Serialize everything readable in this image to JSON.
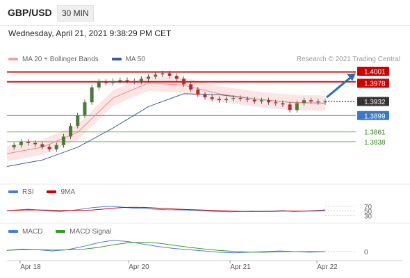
{
  "header": {
    "symbol": "GBP/USD",
    "timeframe": "30 MIN",
    "datetime": "Wednesday, April 21, 2021 9:38:29 PM CET"
  },
  "legend": {
    "ma20": "MA 20 + Bollinger Bands",
    "ma50": "MA 50",
    "credit": "Research © 2021 Trading Central",
    "rsi": "RSI",
    "rsi_ma": "9MA",
    "macd": "MACD",
    "macd_signal": "MACD Signal"
  },
  "colors": {
    "resistance": "#cc0000",
    "support": "#3a78c8",
    "support2": "#7cb563",
    "current": "#333333",
    "ma20": "#f08a8a",
    "ma50": "#3a5c99",
    "band_fill": "#fbe0e0",
    "arrow": "#2a6fb5"
  },
  "chart_data": {
    "type": "candlestick",
    "instrument": "GBP/USD",
    "interval": "30 MIN",
    "x_ticks": [
      "Apr 18",
      "Apr 20",
      "Apr 21",
      "Apr 22"
    ],
    "ylim": [
      1.375,
      1.401
    ],
    "levels": [
      {
        "value": 1.4001,
        "label": "1.4001",
        "kind": "resistance"
      },
      {
        "value": 1.3978,
        "label": "1.3978",
        "kind": "resistance"
      },
      {
        "value": 1.3932,
        "label": "1.3932",
        "kind": "current"
      },
      {
        "value": 1.3899,
        "label": "1.3899",
        "kind": "support"
      },
      {
        "value": 1.3861,
        "label": "1.3861",
        "kind": "support2"
      },
      {
        "value": 1.3838,
        "label": "1.3838",
        "kind": "support2"
      }
    ],
    "price_path": [
      [
        0,
        1.3825
      ],
      [
        1,
        1.383
      ],
      [
        2,
        1.3838
      ],
      [
        3,
        1.3835
      ],
      [
        4,
        1.3832
      ],
      [
        5,
        1.3826
      ],
      [
        6,
        1.382
      ],
      [
        7,
        1.383
      ],
      [
        8,
        1.385
      ],
      [
        9,
        1.3875
      ],
      [
        10,
        1.39
      ],
      [
        11,
        1.393
      ],
      [
        12,
        1.3965
      ],
      [
        13,
        1.3978
      ],
      [
        14,
        1.3975
      ],
      [
        15,
        1.398
      ],
      [
        16,
        1.3982
      ],
      [
        17,
        1.398
      ],
      [
        18,
        1.3978
      ],
      [
        19,
        1.3985
      ],
      [
        20,
        1.399
      ],
      [
        21,
        1.3995
      ],
      [
        22,
        1.3998
      ],
      [
        23,
        1.3992
      ],
      [
        24,
        1.3985
      ],
      [
        25,
        1.3972
      ],
      [
        26,
        1.396
      ],
      [
        27,
        1.3948
      ],
      [
        28,
        1.3942
      ],
      [
        29,
        1.3938
      ],
      [
        30,
        1.3935
      ],
      [
        31,
        1.3938
      ],
      [
        32,
        1.394
      ],
      [
        33,
        1.3938
      ],
      [
        34,
        1.3936
      ],
      [
        35,
        1.3932
      ],
      [
        36,
        1.3935
      ],
      [
        37,
        1.393
      ],
      [
        38,
        1.3928
      ],
      [
        39,
        1.3925
      ],
      [
        40,
        1.3912
      ],
      [
        41,
        1.3928
      ],
      [
        42,
        1.3935
      ],
      [
        43,
        1.3932
      ],
      [
        44,
        1.393
      ],
      [
        45,
        1.3932
      ]
    ],
    "ma20_path": [
      [
        0,
        1.381
      ],
      [
        5,
        1.3825
      ],
      [
        10,
        1.386
      ],
      [
        15,
        1.394
      ],
      [
        20,
        1.3975
      ],
      [
        25,
        1.397
      ],
      [
        30,
        1.395
      ],
      [
        35,
        1.3938
      ],
      [
        40,
        1.393
      ],
      [
        45,
        1.3928
      ]
    ],
    "ma50_path": [
      [
        0,
        1.378
      ],
      [
        5,
        1.3795
      ],
      [
        10,
        1.3825
      ],
      [
        15,
        1.387
      ],
      [
        20,
        1.392
      ],
      [
        25,
        1.395
      ],
      [
        30,
        1.3948
      ],
      [
        35,
        1.3938
      ],
      [
        40,
        1.393
      ],
      [
        45,
        1.3928
      ]
    ],
    "projection": {
      "from": 1.3935,
      "to": 1.4001
    },
    "rsi": {
      "levels": [
        "70",
        "50",
        "30"
      ],
      "values": [
        52,
        55,
        58,
        54,
        50,
        48,
        52,
        58,
        64,
        68,
        70,
        66,
        62,
        60,
        58,
        56,
        55,
        54,
        52,
        50,
        48,
        47,
        48,
        50,
        49,
        50,
        52,
        48,
        50,
        52,
        55
      ]
    },
    "macd": {
      "levels": [
        "0"
      ],
      "values": [
        0.0002,
        0.0004,
        0.0003,
        0.0001,
        0.0003,
        0.0008,
        0.0014,
        0.0018,
        0.0016,
        0.0012,
        0.0008,
        0.0005,
        0.0003,
        0.0001,
        -0.0001,
        -0.0002,
        -0.0001,
        0.0,
        0.0001,
        0.0,
        -0.0001,
        0.0
      ]
    }
  }
}
